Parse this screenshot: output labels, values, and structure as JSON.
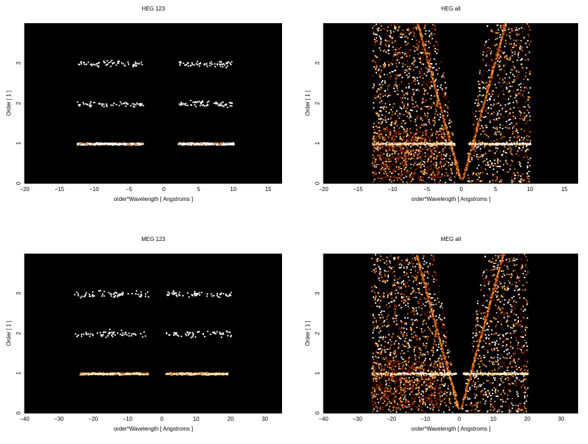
{
  "chart_data": [
    {
      "type": "heatmap",
      "title": "HEG 123",
      "xlabel": "order*Wavelength [ Angstroms ]",
      "ylabel": "Order [ 1 ]",
      "xlim": [
        -20,
        17
      ],
      "ylim": [
        0,
        4
      ],
      "xticks": [
        -20,
        -15,
        -10,
        -5,
        0,
        5,
        10,
        15
      ],
      "yticks": [
        0,
        1,
        2,
        3
      ],
      "background": "#000000",
      "colormap": [
        "#3a0000",
        "#8b1a00",
        "#d2691e",
        "#ffb347",
        "#ffffff"
      ],
      "density_clusters": [
        {
          "order": 1,
          "x_range": [
            -12.5,
            -3.0
          ],
          "density": "high",
          "color": "#ffffff"
        },
        {
          "order": 1,
          "x_range": [
            2.0,
            10.0
          ],
          "density": "high",
          "color": "#ffffff"
        },
        {
          "order": 2,
          "x_range": [
            -12.5,
            -3.0
          ],
          "density": "low",
          "color": "#ffffff"
        },
        {
          "order": 2,
          "x_range": [
            2.0,
            10.0
          ],
          "density": "low",
          "color": "#ffffff"
        },
        {
          "order": 3,
          "x_range": [
            -12.5,
            -3.0
          ],
          "density": "low",
          "color": "#ffffff"
        },
        {
          "order": 3,
          "x_range": [
            2.0,
            10.0
          ],
          "density": "low",
          "color": "#ffffff"
        }
      ]
    },
    {
      "type": "heatmap",
      "title": "HEG all",
      "xlabel": "order*Wavelength [ Angstroms ]",
      "ylabel": "Order [ 1 ]",
      "xlim": [
        -20,
        17
      ],
      "ylim": [
        0,
        4
      ],
      "xticks": [
        -20,
        -15,
        -10,
        -5,
        0,
        5,
        10,
        15
      ],
      "yticks": [
        0,
        1,
        2,
        3
      ],
      "background": "#000000",
      "colormap": [
        "#3a0000",
        "#8b1a00",
        "#d2691e",
        "#ffb347",
        "#ffffff"
      ],
      "wedge_x_range": [
        -13.0,
        10.0
      ],
      "order1_band_x_range": [
        -13.0,
        10.0
      ],
      "bright_streak_positive_slope": 1.6,
      "bright_streak_negative_slope": -1.6
    },
    {
      "type": "heatmap",
      "title": "MEG 123",
      "xlabel": "order*Wavelength [ Angstroms ]",
      "ylabel": "Order [ 1 ]",
      "xlim": [
        -40,
        35
      ],
      "ylim": [
        0,
        4
      ],
      "xticks": [
        -40,
        -30,
        -20,
        -10,
        0,
        10,
        20,
        30
      ],
      "yticks": [
        0,
        1,
        2,
        3
      ],
      "background": "#000000",
      "colormap": [
        "#3a0000",
        "#8b1a00",
        "#d2691e",
        "#ffb347",
        "#ffffff"
      ],
      "density_clusters": [
        {
          "order": 1,
          "x_range": [
            -24.0,
            -4.0
          ],
          "density": "high",
          "color": "#ffe6b0"
        },
        {
          "order": 1,
          "x_range": [
            1.0,
            19.0
          ],
          "density": "high",
          "color": "#ffe6b0"
        },
        {
          "order": 2,
          "x_range": [
            -26.0,
            -4.0
          ],
          "density": "low",
          "color": "#ffffff"
        },
        {
          "order": 2,
          "x_range": [
            1.0,
            20.0
          ],
          "density": "low",
          "color": "#ffffff"
        },
        {
          "order": 3,
          "x_range": [
            -26.0,
            -4.0
          ],
          "density": "low",
          "color": "#ffffff"
        },
        {
          "order": 3,
          "x_range": [
            1.0,
            20.0
          ],
          "density": "low",
          "color": "#ffffff"
        }
      ]
    },
    {
      "type": "heatmap",
      "title": "MEG all",
      "xlabel": "order*Wavelength [ Angstroms ]",
      "ylabel": "Order [ 1 ]",
      "xlim": [
        -40,
        35
      ],
      "ylim": [
        0,
        4
      ],
      "xticks": [
        -40,
        -30,
        -20,
        -10,
        0,
        10,
        20,
        30
      ],
      "yticks": [
        0,
        1,
        2,
        3
      ],
      "background": "#000000",
      "colormap": [
        "#3a0000",
        "#8b1a00",
        "#d2691e",
        "#ffb347",
        "#ffffff"
      ],
      "wedge_x_range": [
        -26.0,
        20.0
      ],
      "order1_band_x_range": [
        -26.0,
        20.0
      ],
      "bright_streak_positive_slope": 3.2,
      "bright_streak_negative_slope": -3.2
    }
  ]
}
